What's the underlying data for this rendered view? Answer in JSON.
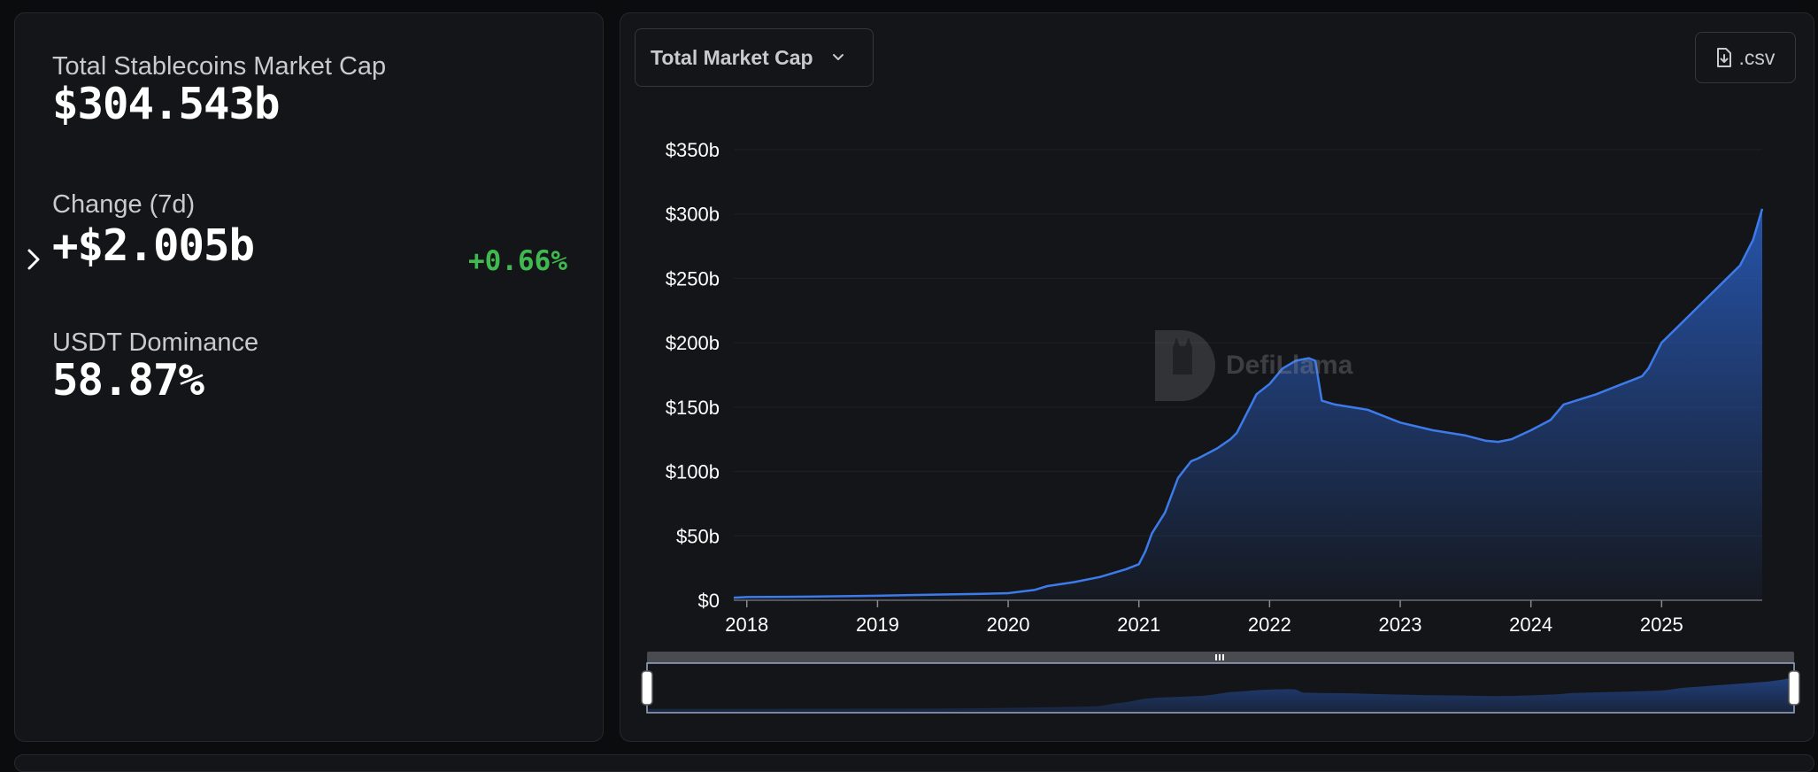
{
  "stats": {
    "market_cap_label": "Total Stablecoins Market Cap",
    "market_cap_value": "$304.543b",
    "change_label": "Change (7d)",
    "change_value": "+$2.005b",
    "change_pct": "+0.66%",
    "dominance_label": "USDT Dominance",
    "dominance_value": "58.87%"
  },
  "controls": {
    "dropdown_label": "Total Market Cap",
    "csv_label": ".csv"
  },
  "watermark": "DefiLlama",
  "colors": {
    "line": "#3d7bea",
    "positive": "#3fb950",
    "background": "#141518"
  },
  "chart_data": {
    "type": "area",
    "title": "",
    "xlabel": "",
    "ylabel": "",
    "ylim": [
      0,
      350
    ],
    "ytick_labels": [
      "$0",
      "$50b",
      "$100b",
      "$150b",
      "$200b",
      "$250b",
      "$300b",
      "$350b"
    ],
    "yticks": [
      0,
      50,
      100,
      150,
      200,
      250,
      300,
      350
    ],
    "xtick_labels": [
      "2018",
      "2019",
      "2020",
      "2021",
      "2022",
      "2023",
      "2024",
      "2025"
    ],
    "xlim": [
      2017.9,
      2025.77
    ],
    "grid": true,
    "legend": "none",
    "series": [
      {
        "values_unit": "billions USD",
        "x": [
          2017.9,
          2018.0,
          2018.5,
          2019.0,
          2019.5,
          2019.8,
          2020.0,
          2020.2,
          2020.3,
          2020.5,
          2020.7,
          2020.9,
          2021.0,
          2021.05,
          2021.1,
          2021.2,
          2021.3,
          2021.4,
          2021.45,
          2021.6,
          2021.7,
          2021.75,
          2021.8,
          2021.85,
          2021.9,
          2022.0,
          2022.1,
          2022.2,
          2022.25,
          2022.3,
          2022.35,
          2022.4,
          2022.5,
          2022.75,
          2023.0,
          2023.25,
          2023.5,
          2023.65,
          2023.75,
          2023.85,
          2024.0,
          2024.15,
          2024.25,
          2024.5,
          2024.65,
          2024.8,
          2024.85,
          2024.9,
          2025.0,
          2025.15,
          2025.3,
          2025.45,
          2025.6,
          2025.7,
          2025.77
        ],
        "y": [
          2,
          2.5,
          2.8,
          3.5,
          4.5,
          5,
          5.5,
          8,
          11,
          14,
          18,
          24,
          28,
          38,
          52,
          68,
          95,
          108,
          110,
          118,
          125,
          130,
          140,
          150,
          160,
          168,
          180,
          186,
          187,
          188,
          186,
          155,
          152,
          148,
          138,
          132,
          128,
          124,
          123,
          125,
          132,
          140,
          152,
          160,
          166,
          172,
          174,
          180,
          200,
          215,
          230,
          245,
          260,
          280,
          304
        ]
      }
    ]
  }
}
